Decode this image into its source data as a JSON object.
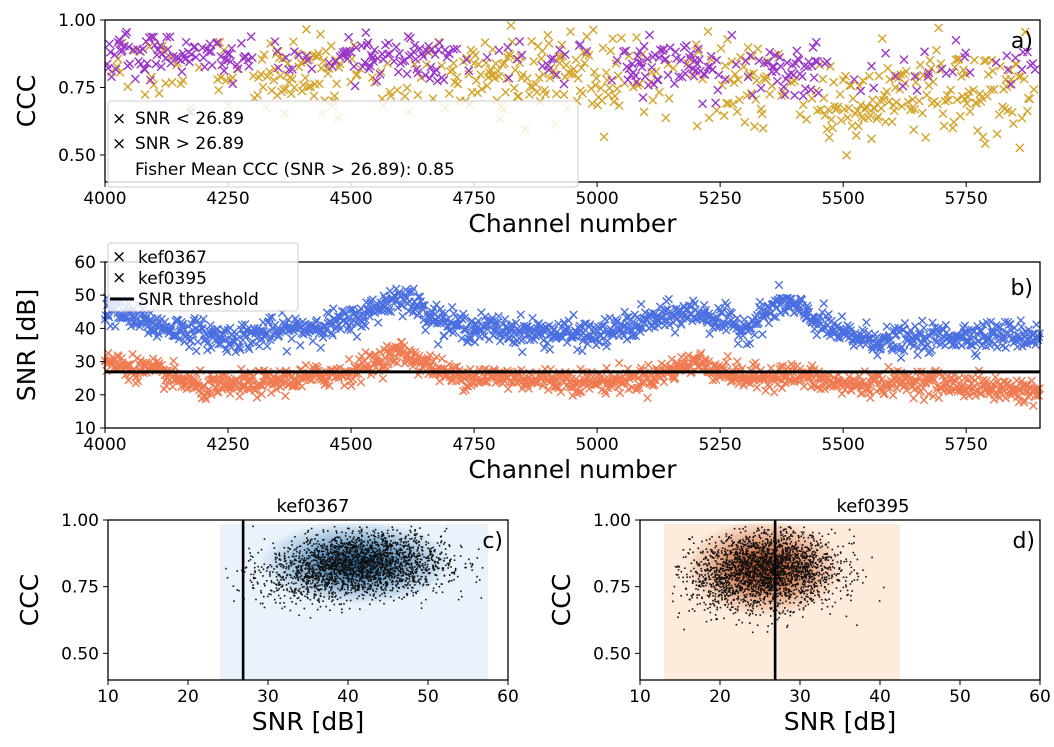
{
  "colors": {
    "gold": "#d4a42a",
    "purple": "#9a36c8",
    "blue": "#4a6fe0",
    "orange": "#f07a50",
    "threshold": "#000000"
  },
  "chart_data": [
    {
      "id": "a",
      "type": "scatter",
      "panel_label": "a)",
      "xlabel": "Channel number",
      "ylabel": "CCC",
      "xlim": [
        4000,
        5900
      ],
      "ylim": [
        0.4,
        1.0
      ],
      "xticks": [
        4000,
        4250,
        4500,
        4750,
        5000,
        5250,
        5500,
        5750
      ],
      "yticks": [
        "0.50",
        "0.75",
        "1.00"
      ],
      "grid": false,
      "legend_position": "lower-left",
      "series": [
        {
          "name": "SNR < 26.89",
          "color": "#d4a42a",
          "marker": "x",
          "trend": [
            [
              4000,
              0.82
            ],
            [
              4250,
              0.8
            ],
            [
              4500,
              0.79
            ],
            [
              4750,
              0.8
            ],
            [
              5000,
              0.8
            ],
            [
              5250,
              0.78
            ],
            [
              5400,
              0.72
            ],
            [
              5500,
              0.66
            ],
            [
              5600,
              0.7
            ],
            [
              5750,
              0.74
            ],
            [
              5900,
              0.76
            ]
          ],
          "spread": 0.08
        },
        {
          "name": "SNR > 26.89",
          "color": "#9a36c8",
          "marker": "x",
          "trend": [
            [
              4000,
              0.88
            ],
            [
              4250,
              0.85
            ],
            [
              4500,
              0.86
            ],
            [
              4750,
              0.85
            ],
            [
              5000,
              0.84
            ],
            [
              5250,
              0.83
            ],
            [
              5500,
              0.8
            ],
            [
              5750,
              0.82
            ],
            [
              5900,
              0.83
            ]
          ],
          "spread": 0.05
        }
      ],
      "annotation": "Fisher Mean CCC (SNR > 26.89): 0.85"
    },
    {
      "id": "b",
      "type": "scatter",
      "panel_label": "b)",
      "xlabel": "Channel number",
      "ylabel": "SNR [dB]",
      "xlim": [
        4000,
        5900
      ],
      "ylim": [
        10,
        60
      ],
      "xticks": [
        4000,
        4250,
        4500,
        4750,
        5000,
        5250,
        5500,
        5750
      ],
      "yticks": [
        10,
        20,
        30,
        40,
        50,
        60
      ],
      "grid": false,
      "legend_position": "upper-left",
      "series": [
        {
          "name": "kef0367",
          "color": "#4a6fe0",
          "marker": "x",
          "trend": [
            [
              4000,
              46
            ],
            [
              4100,
              41
            ],
            [
              4250,
              37
            ],
            [
              4400,
              40
            ],
            [
              4500,
              42
            ],
            [
              4600,
              50
            ],
            [
              4700,
              41
            ],
            [
              4850,
              39
            ],
            [
              5000,
              38
            ],
            [
              5100,
              42
            ],
            [
              5200,
              45
            ],
            [
              5300,
              40
            ],
            [
              5380,
              48
            ],
            [
              5500,
              38
            ],
            [
              5600,
              36
            ],
            [
              5750,
              38
            ],
            [
              5900,
              38
            ]
          ],
          "spread": 3.5
        },
        {
          "name": "kef0395",
          "color": "#f07a50",
          "marker": "x",
          "trend": [
            [
              4000,
              30
            ],
            [
              4100,
              27
            ],
            [
              4200,
              22
            ],
            [
              4350,
              24
            ],
            [
              4500,
              27
            ],
            [
              4600,
              33
            ],
            [
              4700,
              26
            ],
            [
              4850,
              25
            ],
            [
              5000,
              24
            ],
            [
              5100,
              25
            ],
            [
              5200,
              30
            ],
            [
              5300,
              25
            ],
            [
              5400,
              26
            ],
            [
              5500,
              23
            ],
            [
              5650,
              24
            ],
            [
              5800,
              22
            ],
            [
              5900,
              21
            ]
          ],
          "spread": 3.0
        }
      ],
      "threshold": {
        "name": "SNR threshold",
        "value": 26.89
      }
    },
    {
      "id": "c",
      "type": "scatter",
      "panel_label": "c)",
      "title": "kef0367",
      "xlabel": "SNR [dB]",
      "ylabel": "CCC",
      "xlim": [
        10,
        60
      ],
      "ylim": [
        0.4,
        1.0
      ],
      "xticks": [
        10,
        20,
        30,
        40,
        50,
        60
      ],
      "yticks": [
        "0.50",
        "0.75",
        "1.00"
      ],
      "grid": false,
      "vline": 26.89,
      "density_color": "#1f6aa8",
      "density_bg": "#eaf3fb",
      "density_range": [
        24,
        57.5
      ],
      "cluster": {
        "x_mean": 41,
        "x_sd": 5.5,
        "y_mean": 0.84,
        "y_sd": 0.06
      }
    },
    {
      "id": "d",
      "type": "scatter",
      "panel_label": "d)",
      "title": "kef0395",
      "xlabel": "SNR [dB]",
      "ylabel": "CCC",
      "xlim": [
        10,
        60
      ],
      "ylim": [
        0.4,
        1.0
      ],
      "xticks": [
        10,
        20,
        30,
        40,
        50,
        60
      ],
      "yticks": [
        "0.50",
        "0.75",
        "1.00"
      ],
      "grid": false,
      "vline": 26.89,
      "density_color": "#c44a10",
      "density_bg": "#fdebdc",
      "density_range": [
        13,
        42.5
      ],
      "cluster": {
        "x_mean": 25.5,
        "x_sd": 4.5,
        "y_mean": 0.82,
        "y_sd": 0.07
      }
    }
  ]
}
